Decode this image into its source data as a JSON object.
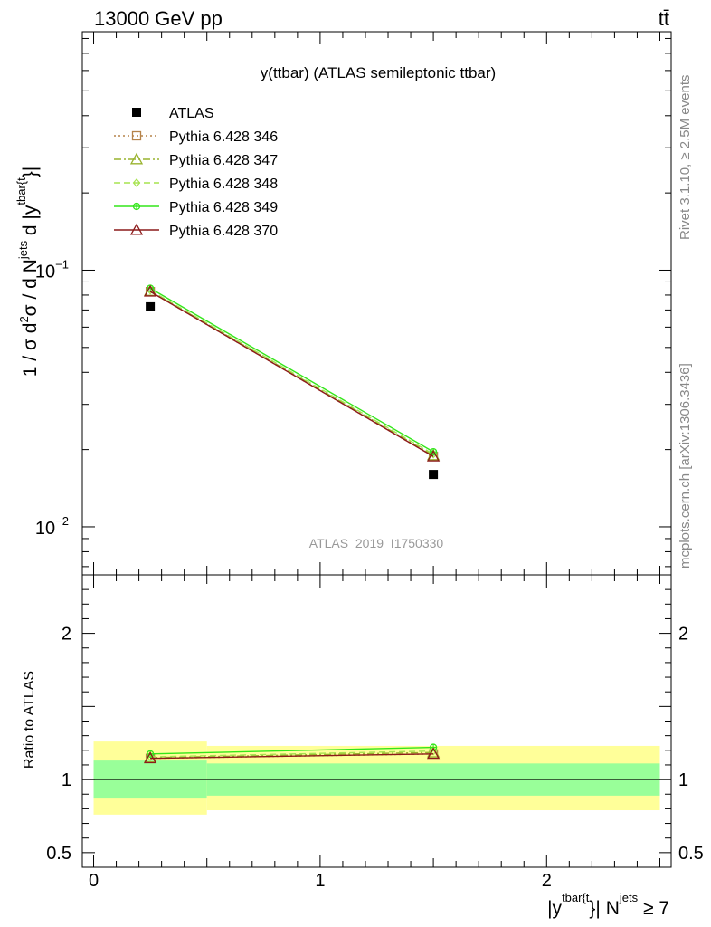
{
  "header": {
    "left": "13000 GeV pp",
    "right": "tt̄"
  },
  "side_labels": {
    "rivet": "Rivet 3.1.10, ≥ 2.5M events",
    "mcplots": "mcplots.cern.ch [arXiv:1306.3436]"
  },
  "chart_data": [
    {
      "type": "line",
      "panel": "main",
      "title": "y(ttbar) (ATLAS semileptonic ttbar)",
      "ylabel": "1 / σ d²σ / d N^jets d |y^tbar{t}|",
      "ylabel_parts": {
        "base": "1 / σ d",
        "sup1": "2",
        "mid": "σ / d N",
        "sup2": "jets",
        "mid2": " d |y",
        "sup3": "tbar{t",
        "end": "}|"
      },
      "yscale": "log",
      "ylim": [
        0.0065,
        0.85
      ],
      "y_ticks": [
        {
          "value": 0.1,
          "mantissa": "10",
          "exp": "−1"
        },
        {
          "value": 0.01,
          "mantissa": "10",
          "exp": "−2"
        }
      ],
      "xlim": [
        -0.05,
        2.55
      ],
      "watermark": "ATLAS_2019_I1750330",
      "legend_position": "top-left",
      "x": [
        0.25,
        1.5
      ],
      "series": [
        {
          "name": "ATLAS",
          "values": [
            0.072,
            0.016
          ],
          "color": "#000000",
          "marker": "square-filled",
          "line": "none"
        },
        {
          "name": "Pythia 6.428 346",
          "values": [
            0.0825,
            0.0188
          ],
          "color": "#b5834a",
          "marker": "square-open",
          "line": "dotted"
        },
        {
          "name": "Pythia 6.428 347",
          "values": [
            0.083,
            0.019
          ],
          "color": "#99b32e",
          "marker": "triangle-open",
          "line": "dashdot"
        },
        {
          "name": "Pythia 6.428 348",
          "values": [
            0.0835,
            0.0192
          ],
          "color": "#a6e34f",
          "marker": "diamond-open",
          "line": "dashed"
        },
        {
          "name": "Pythia 6.428 349",
          "values": [
            0.085,
            0.0196
          ],
          "color": "#33e61a",
          "marker": "circle-cross",
          "line": "solid"
        },
        {
          "name": "Pythia 6.428 370",
          "values": [
            0.0825,
            0.0188
          ],
          "color": "#8c1a1a",
          "marker": "triangle-open",
          "line": "solid"
        }
      ]
    },
    {
      "type": "line",
      "panel": "ratio",
      "ylabel": "Ratio to ATLAS",
      "ylim": [
        0.4,
        2.4
      ],
      "y_ticks": [
        {
          "value": 2,
          "label": "2"
        },
        {
          "value": 1,
          "label": "1"
        },
        {
          "value": 0.5,
          "label": "0.5"
        }
      ],
      "xlim": [
        -0.05,
        2.55
      ],
      "x_ticks": [
        {
          "value": 0,
          "label": "0"
        },
        {
          "value": 1,
          "label": "1"
        },
        {
          "value": 2,
          "label": "2"
        }
      ],
      "xlabel": "|y^tbar{t}| N^jets ≥ 7",
      "xlabel_parts": {
        "a": "|y",
        "sup1": "tbar{t",
        "b": "}| N",
        "sup2": "jets",
        "c": " ≥ 7"
      },
      "bands": [
        {
          "x0": 0.0,
          "x1": 0.5,
          "yellow": [
            0.76,
            1.26
          ],
          "green": [
            0.87,
            1.13
          ]
        },
        {
          "x0": 0.5,
          "x1": 2.5,
          "yellow": [
            0.79,
            1.23
          ],
          "green": [
            0.89,
            1.11
          ]
        }
      ],
      "band_colors": {
        "yellow": "#ffff99",
        "green": "#99ff99"
      },
      "x": [
        0.25,
        1.5
      ],
      "series": [
        {
          "name": "Pythia 6.428 346",
          "values": [
            1.145,
            1.175
          ],
          "color": "#b5834a",
          "marker": "square-open",
          "line": "dotted"
        },
        {
          "name": "Pythia 6.428 347",
          "values": [
            1.15,
            1.185
          ],
          "color": "#99b32e",
          "marker": "triangle-open",
          "line": "dashdot"
        },
        {
          "name": "Pythia 6.428 348",
          "values": [
            1.155,
            1.195
          ],
          "color": "#a6e34f",
          "marker": "diamond-open",
          "line": "dashed"
        },
        {
          "name": "Pythia 6.428 349",
          "values": [
            1.175,
            1.22
          ],
          "color": "#33e61a",
          "marker": "circle-cross",
          "line": "solid"
        },
        {
          "name": "Pythia 6.428 370",
          "values": [
            1.145,
            1.175
          ],
          "color": "#8c1a1a",
          "marker": "triangle-open",
          "line": "solid"
        }
      ]
    }
  ]
}
